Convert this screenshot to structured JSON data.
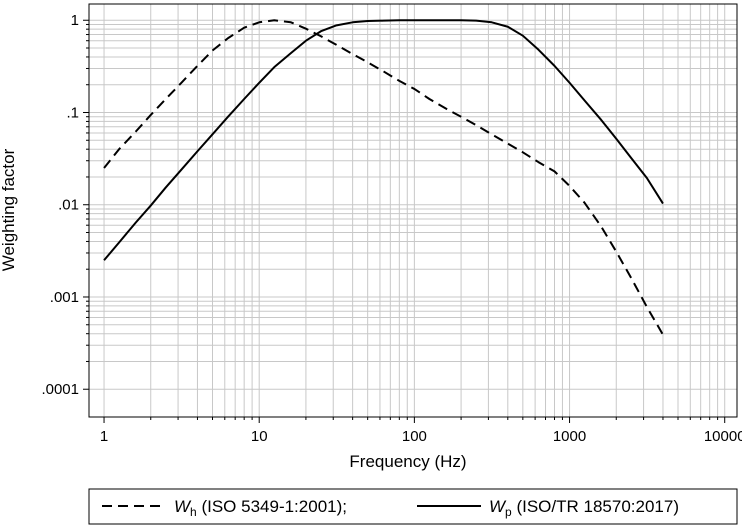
{
  "chart_data": {
    "type": "line",
    "xlabel": "Frequency (Hz)",
    "ylabel": "Weighting factor",
    "xscale": "log",
    "yscale": "log",
    "xlim": [
      0.8,
      12000
    ],
    "ylim": [
      5e-05,
      1.5
    ],
    "grid": true,
    "legend_position": "bottom",
    "x_ticks": [
      {
        "value": 1,
        "label": "1"
      },
      {
        "value": 10,
        "label": "10"
      },
      {
        "value": 100,
        "label": "100"
      },
      {
        "value": 1000,
        "label": "1000"
      },
      {
        "value": 10000,
        "label": "10000"
      }
    ],
    "y_ticks": [
      {
        "value": 0.0001,
        "label": ".0001"
      },
      {
        "value": 0.001,
        "label": ".001"
      },
      {
        "value": 0.01,
        "label": ".01"
      },
      {
        "value": 0.1,
        "label": ".1"
      },
      {
        "value": 1,
        "label": "1"
      }
    ],
    "series": [
      {
        "name": "Wh (ISO 5349-1:2001);",
        "legend_symbol": "W",
        "legend_subscript": "h",
        "legend_suffix": " (ISO 5349-1:2001);",
        "style": "dashed",
        "color": "#000000",
        "points": [
          [
            1.0,
            0.025
          ],
          [
            1.25,
            0.04
          ],
          [
            1.6,
            0.062
          ],
          [
            2.0,
            0.094
          ],
          [
            2.5,
            0.14
          ],
          [
            3.15,
            0.21
          ],
          [
            4.0,
            0.32
          ],
          [
            5.0,
            0.47
          ],
          [
            6.3,
            0.64
          ],
          [
            8.0,
            0.83
          ],
          [
            10.0,
            0.95
          ],
          [
            12.5,
            1.0
          ],
          [
            16.0,
            0.95
          ],
          [
            20.0,
            0.81
          ],
          [
            25.0,
            0.67
          ],
          [
            31.5,
            0.54
          ],
          [
            40.0,
            0.43
          ],
          [
            50.0,
            0.35
          ],
          [
            63.0,
            0.28
          ],
          [
            80.0,
            0.22
          ],
          [
            100.0,
            0.18
          ],
          [
            125.0,
            0.14
          ],
          [
            160.0,
            0.11
          ],
          [
            200.0,
            0.09
          ],
          [
            250.0,
            0.073
          ],
          [
            315.0,
            0.058
          ],
          [
            400.0,
            0.046
          ],
          [
            500.0,
            0.037
          ],
          [
            630.0,
            0.029
          ],
          [
            800.0,
            0.023
          ],
          [
            1000.0,
            0.016
          ],
          [
            1250.0,
            0.0105
          ],
          [
            1600.0,
            0.0058
          ],
          [
            2000.0,
            0.0031
          ],
          [
            2500.0,
            0.0016
          ],
          [
            3150.0,
            0.00078
          ],
          [
            4000.0,
            0.00039
          ]
        ]
      },
      {
        "name": "Wp (ISO/TR 18570:2017)",
        "legend_symbol": "W",
        "legend_subscript": "p",
        "legend_suffix": " (ISO/TR 18570:2017)",
        "style": "solid",
        "color": "#000000",
        "points": [
          [
            1.0,
            0.0025
          ],
          [
            1.25,
            0.0039
          ],
          [
            1.6,
            0.0064
          ],
          [
            2.0,
            0.0098
          ],
          [
            2.5,
            0.0154
          ],
          [
            3.15,
            0.024
          ],
          [
            4.0,
            0.038
          ],
          [
            5.0,
            0.058
          ],
          [
            6.3,
            0.09
          ],
          [
            8.0,
            0.14
          ],
          [
            10.0,
            0.21
          ],
          [
            12.5,
            0.31
          ],
          [
            16.0,
            0.44
          ],
          [
            20.0,
            0.6
          ],
          [
            25.0,
            0.76
          ],
          [
            31.5,
            0.88
          ],
          [
            40.0,
            0.95
          ],
          [
            50.0,
            0.98
          ],
          [
            63.0,
            0.99
          ],
          [
            80.0,
            1.0
          ],
          [
            100.0,
            1.0
          ],
          [
            125.0,
            1.0
          ],
          [
            160.0,
            1.0
          ],
          [
            200.0,
            1.0
          ],
          [
            250.0,
            0.99
          ],
          [
            315.0,
            0.95
          ],
          [
            400.0,
            0.85
          ],
          [
            500.0,
            0.68
          ],
          [
            630.0,
            0.48
          ],
          [
            800.0,
            0.32
          ],
          [
            1000.0,
            0.21
          ],
          [
            1250.0,
            0.135
          ],
          [
            1600.0,
            0.083
          ],
          [
            2000.0,
            0.052
          ],
          [
            2500.0,
            0.032
          ],
          [
            3150.0,
            0.0195
          ],
          [
            4000.0,
            0.0103
          ]
        ]
      }
    ]
  }
}
